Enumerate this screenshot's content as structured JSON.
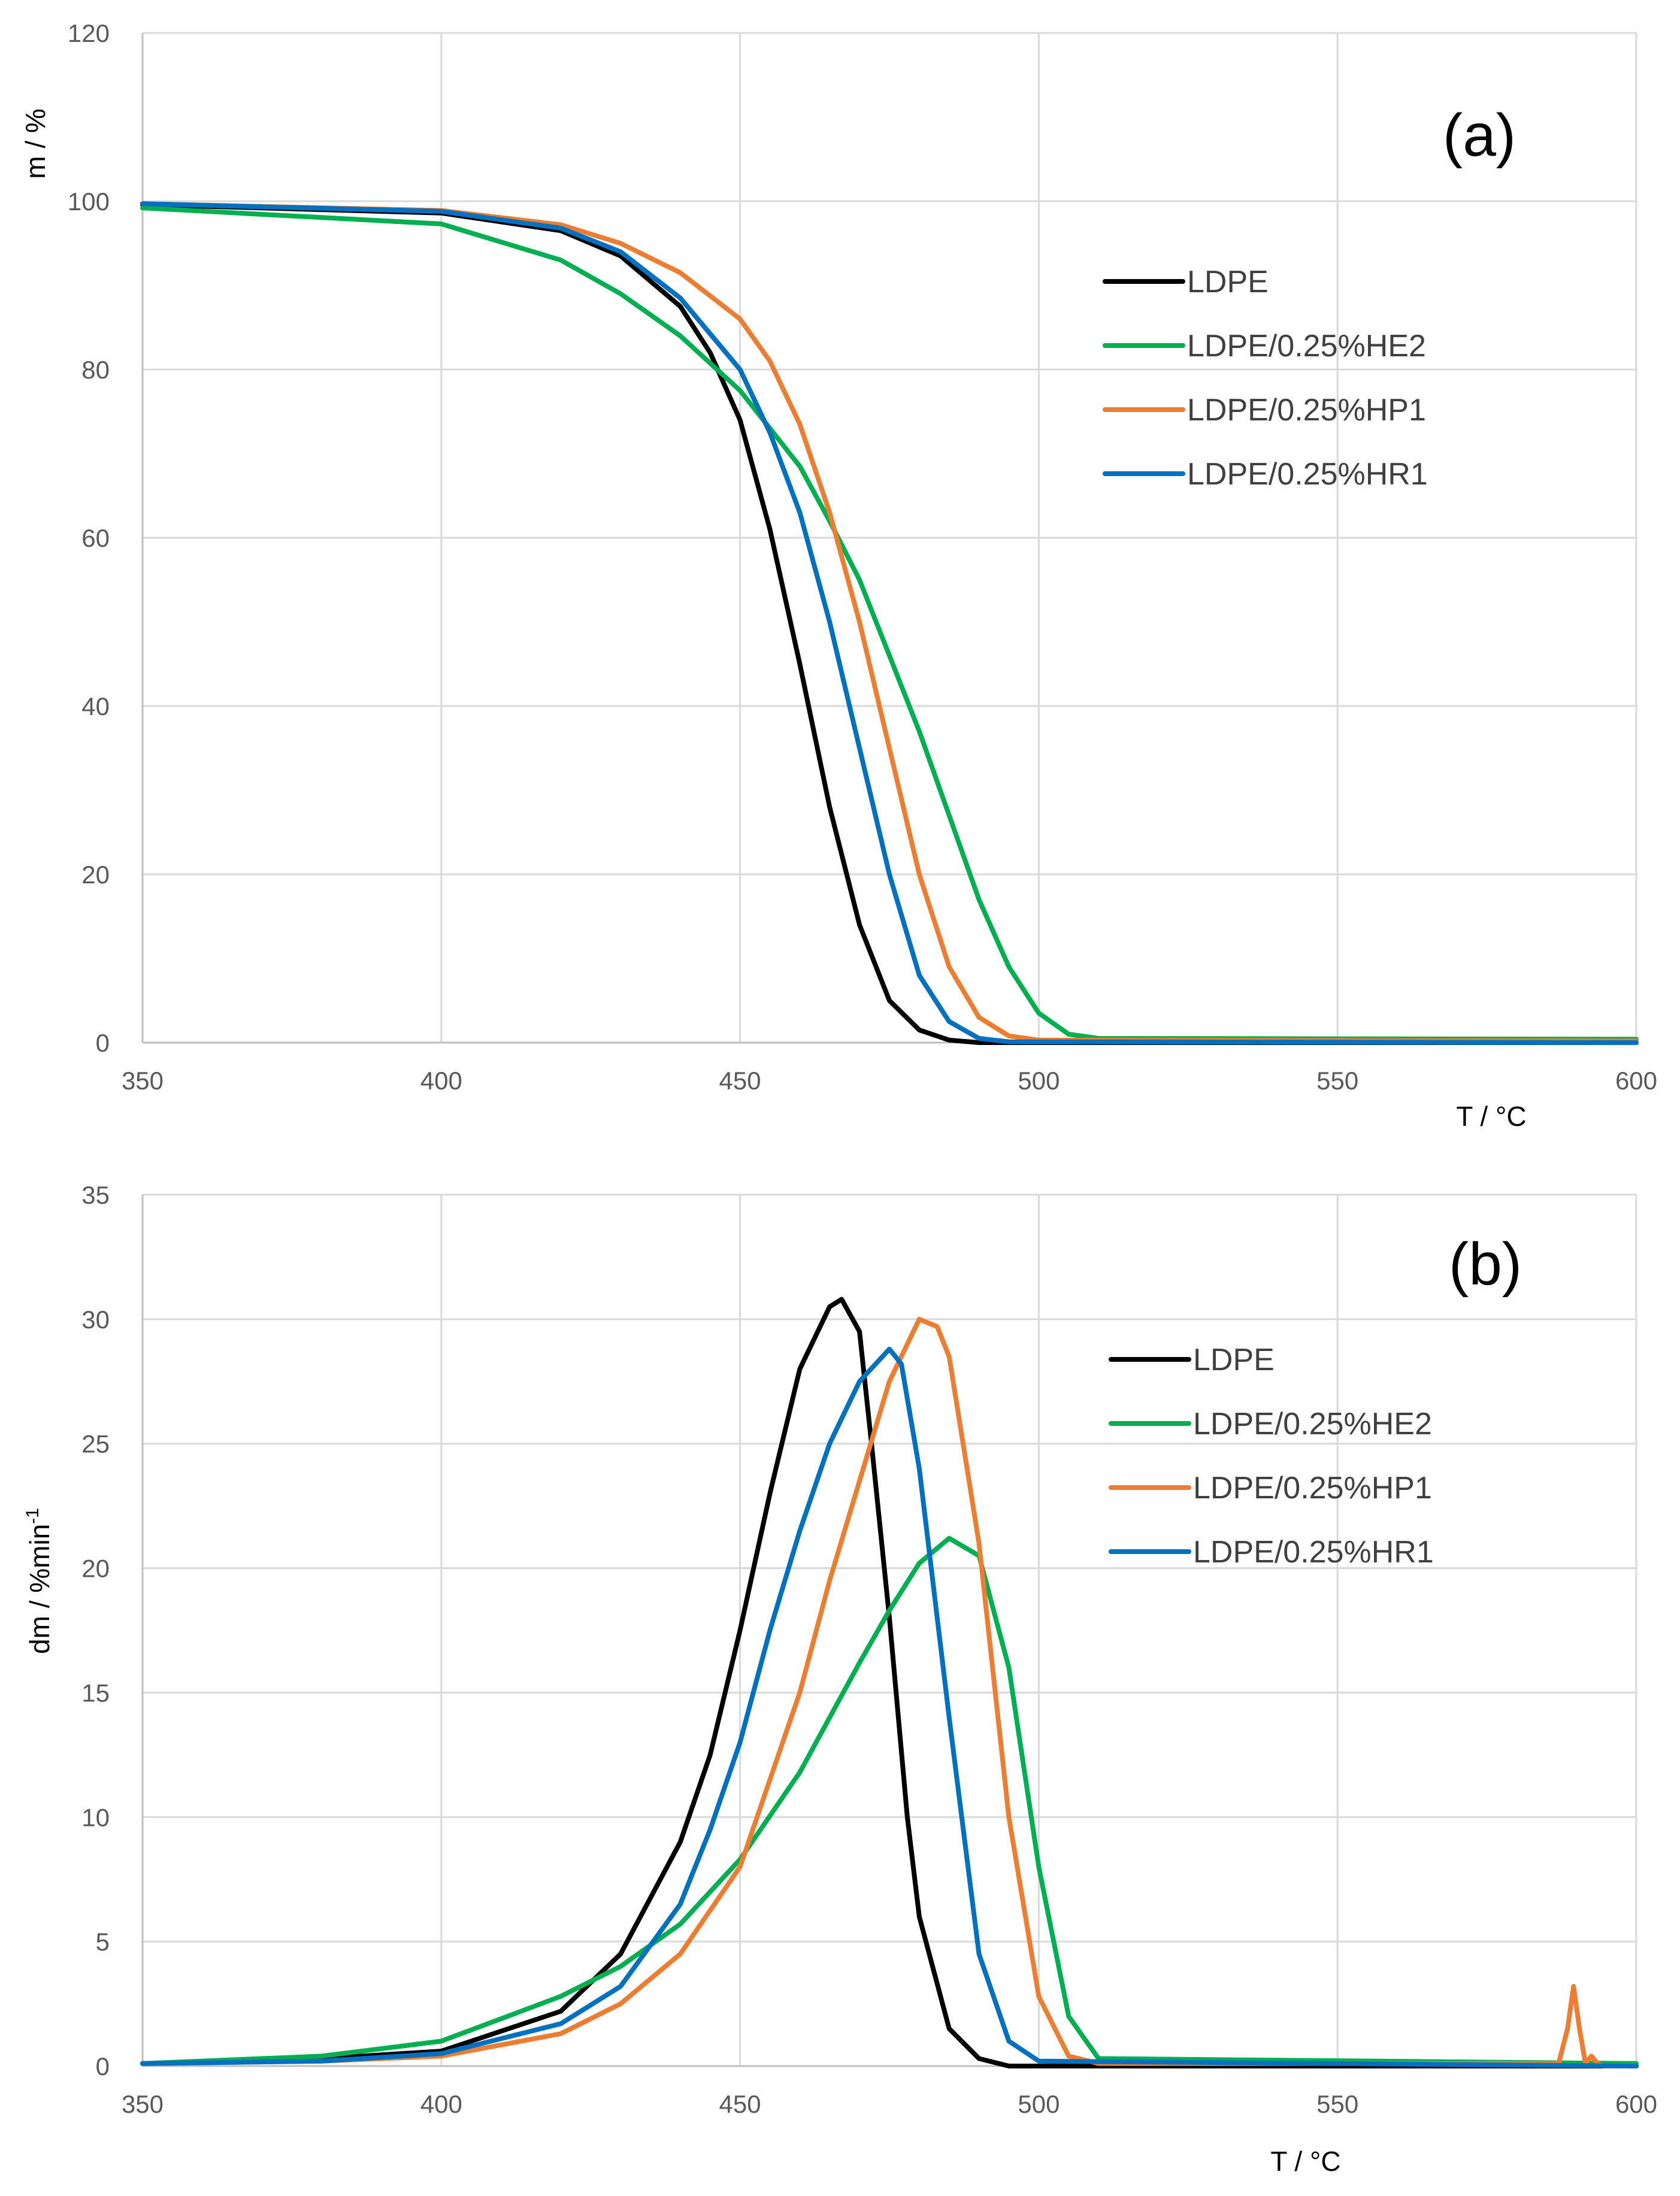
{
  "chart_data": [
    {
      "type": "line",
      "panel_label": "(a)",
      "xlabel": "T / °C",
      "ylabel": "m / %",
      "xlim": [
        350,
        600
      ],
      "ylim": [
        0,
        120
      ],
      "xticks": [
        350,
        400,
        450,
        500,
        550,
        600
      ],
      "yticks": [
        0,
        20,
        40,
        60,
        80,
        100,
        120
      ],
      "grid": true,
      "legend": "upper-right",
      "series": [
        {
          "name": "LDPE",
          "color": "#000000",
          "x": [
            350,
            400,
            420,
            430,
            440,
            445,
            450,
            455,
            460,
            465,
            470,
            475,
            480,
            485,
            490,
            600
          ],
          "y": [
            99.6,
            98.6,
            96.5,
            93.5,
            87.5,
            82,
            74,
            61,
            45,
            28,
            14,
            5,
            1.5,
            0.3,
            0,
            0
          ]
        },
        {
          "name": "LDPE/0.25%HE2",
          "color": "#00b050",
          "x": [
            350,
            400,
            420,
            430,
            440,
            450,
            460,
            465,
            470,
            475,
            480,
            485,
            490,
            495,
            500,
            505,
            510,
            600
          ],
          "y": [
            99.2,
            97.3,
            93,
            89,
            84,
            77.5,
            68.5,
            62,
            55,
            46,
            37,
            27,
            17,
            9,
            3.5,
            1,
            0.5,
            0.4
          ]
        },
        {
          "name": "LDPE/0.25%HP1",
          "color": "#ed7d31",
          "x": [
            350,
            400,
            420,
            430,
            440,
            450,
            455,
            460,
            465,
            470,
            475,
            480,
            485,
            490,
            495,
            500,
            600
          ],
          "y": [
            99.7,
            98.9,
            97.2,
            95,
            91.5,
            86,
            81,
            73.5,
            63,
            50,
            35,
            20,
            9,
            3,
            0.8,
            0.3,
            0.2
          ]
        },
        {
          "name": "LDPE/0.25%HR1",
          "color": "#0070c0",
          "x": [
            350,
            400,
            420,
            430,
            440,
            450,
            455,
            460,
            465,
            470,
            475,
            480,
            485,
            490,
            495,
            600
          ],
          "y": [
            99.7,
            98.8,
            96.8,
            94,
            88.5,
            80,
            72.5,
            63,
            50,
            35,
            20,
            8,
            2.5,
            0.5,
            0.1,
            0
          ]
        }
      ]
    },
    {
      "type": "line",
      "panel_label": "(b)",
      "xlabel": "T / °C",
      "ylabel": "dm / %min",
      "ylabel_sup": "-1",
      "xlim": [
        350,
        600
      ],
      "ylim": [
        0,
        35
      ],
      "xticks": [
        350,
        400,
        450,
        500,
        550,
        600
      ],
      "yticks": [
        0,
        5,
        10,
        15,
        20,
        25,
        30,
        35
      ],
      "grid": true,
      "legend": "upper-right",
      "series": [
        {
          "name": "LDPE",
          "color": "#000000",
          "x": [
            350,
            380,
            400,
            420,
            430,
            440,
            445,
            450,
            455,
            460,
            465,
            467,
            470,
            472,
            475,
            478,
            480,
            485,
            490,
            495,
            600
          ],
          "y": [
            0.1,
            0.3,
            0.6,
            2.2,
            4.5,
            9,
            12.5,
            17.5,
            23,
            28,
            30.5,
            30.8,
            29.5,
            25,
            18,
            10,
            6,
            1.5,
            0.3,
            0,
            0
          ]
        },
        {
          "name": "LDPE/0.25%HE2",
          "color": "#00b050",
          "x": [
            350,
            380,
            400,
            420,
            430,
            440,
            450,
            460,
            470,
            475,
            480,
            485,
            490,
            495,
            500,
            505,
            510,
            600
          ],
          "y": [
            0.1,
            0.4,
            1,
            2.8,
            4,
            5.7,
            8.3,
            11.8,
            16.2,
            18.3,
            20.2,
            21.2,
            20.5,
            16,
            8,
            2,
            0.3,
            0.1
          ]
        },
        {
          "name": "LDPE/0.25%HP1",
          "color": "#ed7d31",
          "x": [
            350,
            380,
            400,
            420,
            430,
            440,
            450,
            460,
            465,
            470,
            475,
            480,
            483,
            485,
            490,
            495,
            500,
            505,
            510,
            587,
            588.5,
            589.5,
            590.5,
            591.5,
            592.5,
            593.5,
            594.5,
            600
          ],
          "y": [
            0.1,
            0.2,
            0.4,
            1.3,
            2.5,
            4.5,
            8,
            15,
            19.5,
            23.5,
            27.5,
            30,
            29.7,
            28.5,
            21,
            10,
            2.8,
            0.4,
            0.1,
            0.1,
            1.5,
            3.2,
            1.5,
            0.1,
            0.4,
            0.1,
            0,
            0
          ]
        },
        {
          "name": "LDPE/0.25%HR1",
          "color": "#0070c0",
          "x": [
            350,
            380,
            400,
            420,
            430,
            440,
            445,
            450,
            455,
            460,
            465,
            470,
            475,
            477,
            480,
            485,
            490,
            495,
            500,
            600
          ],
          "y": [
            0.1,
            0.2,
            0.5,
            1.7,
            3.2,
            6.5,
            9.5,
            13,
            17.5,
            21.5,
            25,
            27.5,
            28.8,
            28.2,
            24,
            14,
            4.5,
            1,
            0.2,
            0
          ]
        }
      ]
    }
  ]
}
